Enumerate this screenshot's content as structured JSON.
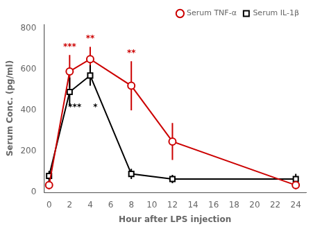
{
  "chart_data": {
    "type": "line",
    "x": [
      0,
      2,
      4,
      8,
      12,
      24
    ],
    "series": [
      {
        "name": "Serum TNF-α",
        "color": "#CC0000",
        "marker": "circle",
        "values": [
          35,
          590,
          650,
          520,
          248,
          35
        ],
        "yerr": [
          20,
          80,
          60,
          120,
          90,
          20
        ]
      },
      {
        "name": "Serum IL-1β",
        "color": "#000000",
        "marker": "square",
        "values": [
          80,
          490,
          570,
          90,
          65,
          65
        ],
        "yerr": [
          25,
          70,
          50,
          25,
          20,
          25
        ]
      }
    ],
    "xlabel": "Hour after LPS injection",
    "ylabel": "Serum Conc. (pg/ml)",
    "xlim": [
      -0.5,
      25
    ],
    "ylim": [
      0,
      820
    ],
    "xticks": [
      0,
      2,
      4,
      6,
      8,
      10,
      12,
      14,
      16,
      18,
      20,
      22,
      24
    ],
    "yticks": [
      0,
      200,
      400,
      600,
      800
    ],
    "grid": false,
    "legend": "upper right",
    "annotations": [
      {
        "text": "***",
        "x": 2,
        "y": 690,
        "color": "#CC0000"
      },
      {
        "text": "**",
        "x": 4,
        "y": 730,
        "color": "#CC0000"
      },
      {
        "text": "**",
        "x": 8,
        "y": 658,
        "color": "#CC0000"
      },
      {
        "text": "***",
        "x": 2.5,
        "y": 395,
        "color": "#000000"
      },
      {
        "text": "*",
        "x": 4.5,
        "y": 395,
        "color": "#000000"
      }
    ]
  }
}
